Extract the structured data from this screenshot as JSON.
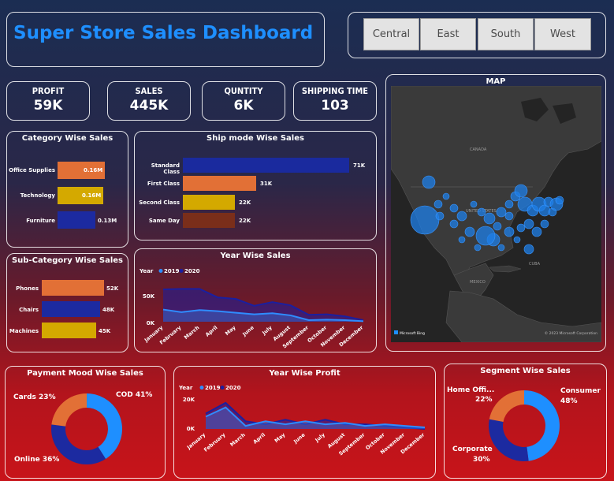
{
  "header": {
    "title": "Super Store Sales Dashboard"
  },
  "regions": [
    "Central",
    "East",
    "South",
    "West"
  ],
  "kpis": [
    {
      "label": "PROFIT",
      "value": "59K"
    },
    {
      "label": "SALES",
      "value": "445K"
    },
    {
      "label": "QUNTITY",
      "value": "6K"
    },
    {
      "label": "SHIPPING TIME",
      "value": "103"
    }
  ],
  "category": {
    "title": "Category Wise Sales",
    "items": [
      {
        "label": "Office Supplies",
        "value": "0.16M",
        "color": "#e27036"
      },
      {
        "label": "Technology",
        "value": "0.16M",
        "color": "#d4a900"
      },
      {
        "label": "Furniture",
        "value": "0.13M",
        "color": "#1c2aa0"
      }
    ]
  },
  "shipmode": {
    "title": "Ship mode Wise Sales",
    "items": [
      {
        "label": "Standard Class",
        "value": "71K",
        "color": "#1a2a9e"
      },
      {
        "label": "First Class",
        "value": "31K",
        "color": "#e27036"
      },
      {
        "label": "Second Class",
        "value": "22K",
        "color": "#d4a900"
      },
      {
        "label": "Same Day",
        "value": "22K",
        "color": "#7a2e1a"
      }
    ]
  },
  "subcategory": {
    "title": "Sub-Category Wise Sales",
    "items": [
      {
        "label": "Phones",
        "value": "52K",
        "color": "#e27036"
      },
      {
        "label": "Chairs",
        "value": "48K",
        "color": "#1c2aa0"
      },
      {
        "label": "Machines",
        "value": "45K",
        "color": "#d4a900"
      }
    ]
  },
  "map": {
    "title": "MAP",
    "labels": {
      "canada": "CANADA",
      "us": "UNITED STATES",
      "mexico": "MEXICO",
      "cuba": "CUBA"
    },
    "attribution": "Microsoft Bing",
    "copyright": "© 2023 Microsoft Corporation"
  },
  "year_sales": {
    "title": "Year Wise Sales",
    "legend_label": "Year",
    "y_ticks": [
      "50K",
      "0K"
    ]
  },
  "year_profit": {
    "title": "Year Wise Profit",
    "legend_label": "Year",
    "y_ticks": [
      "20K",
      "0K"
    ]
  },
  "payment": {
    "title": "Payment Mood Wise Sales",
    "labels": {
      "cod": "COD 41%",
      "cards": "Cards 23%",
      "online": "Online 36%"
    }
  },
  "segment": {
    "title": "Segment Wise Sales",
    "labels": {
      "home_office": "Home Offi...",
      "home_office_pct": "22%",
      "consumer": "Consumer",
      "consumer_pct": "48%",
      "corporate": "Corporate",
      "corporate_pct": "30%"
    }
  },
  "chart_data": [
    {
      "type": "bar",
      "title": "Category Wise Sales",
      "categories": [
        "Office Supplies",
        "Technology",
        "Furniture"
      ],
      "values": [
        0.16,
        0.16,
        0.13
      ]
    },
    {
      "type": "bar",
      "title": "Ship mode Wise Sales",
      "categories": [
        "Standard Class",
        "First Class",
        "Second Class",
        "Same Day"
      ],
      "values": [
        71,
        31,
        22,
        22
      ]
    },
    {
      "type": "bar",
      "title": "Sub-Category Wise Sales",
      "categories": [
        "Phones",
        "Chairs",
        "Machines"
      ],
      "values": [
        52,
        48,
        45
      ]
    },
    {
      "type": "area",
      "title": "Year Wise Sales",
      "ylabel": "",
      "categories": [
        "January",
        "February",
        "March",
        "April",
        "May",
        "June",
        "July",
        "August",
        "September",
        "October",
        "November",
        "December"
      ],
      "ylim": [
        0,
        70
      ],
      "series": [
        {
          "name": "2019",
          "color": "#2f8cff",
          "values": [
            23,
            18,
            22,
            20,
            17,
            14,
            16,
            12,
            3,
            4,
            3,
            1
          ]
        },
        {
          "name": "2020",
          "color": "#1a1fa0",
          "values": [
            61,
            62,
            62,
            46,
            43,
            30,
            37,
            31,
            13,
            14,
            10,
            3
          ]
        }
      ]
    },
    {
      "type": "area",
      "title": "Year Wise Profit",
      "categories": [
        "January",
        "February",
        "March",
        "April",
        "May",
        "June",
        "July",
        "August",
        "September",
        "October",
        "November",
        "December"
      ],
      "ylim": [
        0,
        20
      ],
      "series": [
        {
          "name": "2019",
          "color": "#2f8cff",
          "values": [
            8,
            14,
            2,
            5,
            3,
            5,
            3,
            4,
            2,
            3,
            2,
            1
          ]
        },
        {
          "name": "2020",
          "color": "#1a1fa0",
          "values": [
            10,
            17,
            5,
            3,
            6,
            3,
            6,
            3,
            3,
            2,
            1,
            0
          ]
        }
      ]
    },
    {
      "type": "pie",
      "title": "Payment Mood Wise Sales",
      "categories": [
        "COD",
        "Online",
        "Cards"
      ],
      "values": [
        41,
        36,
        23
      ],
      "colors": [
        "#1e8fff",
        "#1c2aa0",
        "#e27036"
      ]
    },
    {
      "type": "pie",
      "title": "Segment Wise Sales",
      "categories": [
        "Consumer",
        "Corporate",
        "Home Office"
      ],
      "values": [
        48,
        30,
        22
      ],
      "colors": [
        "#1e8fff",
        "#1c2aa0",
        "#e27036"
      ]
    }
  ]
}
